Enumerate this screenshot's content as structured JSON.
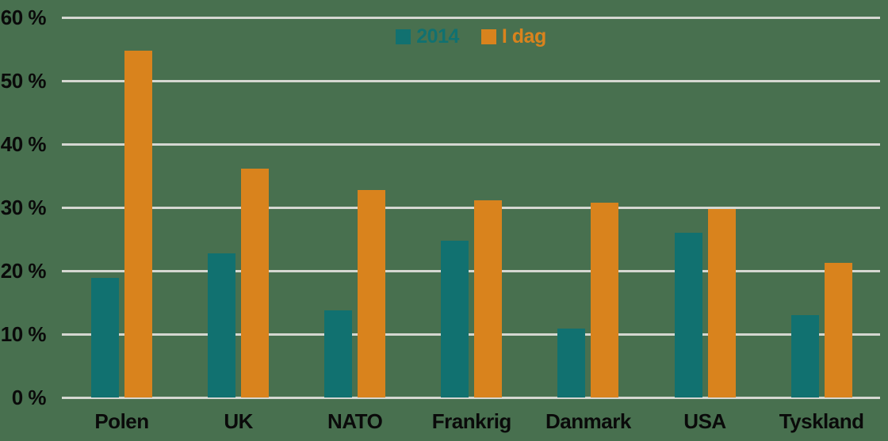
{
  "chart_data": {
    "type": "bar",
    "title": "",
    "xlabel": "",
    "ylabel": "",
    "categories": [
      "Polen",
      "UK",
      "NATO",
      "Frankrig",
      "Danmark",
      "USA",
      "Tyskland"
    ],
    "series": [
      {
        "name": "2014",
        "color": "#117170",
        "values": [
          18.9,
          22.8,
          13.8,
          24.7,
          10.9,
          26.0,
          13.0
        ]
      },
      {
        "name": "I dag",
        "color": "#D9831D",
        "values": [
          54.7,
          36.1,
          32.7,
          31.1,
          30.8,
          29.7,
          21.2
        ]
      }
    ],
    "ylim": [
      0,
      60
    ],
    "ytick_step": 10,
    "ytick_labels": [
      "0 %",
      "10 %",
      "20 %",
      "30 %",
      "40 %",
      "50 %",
      "60 %"
    ],
    "grid": "horizontal",
    "legend_position": "top-center",
    "colors": {
      "background": "#48704F",
      "gridline": "#D5D7D1",
      "text": "#0A0A0A"
    }
  }
}
